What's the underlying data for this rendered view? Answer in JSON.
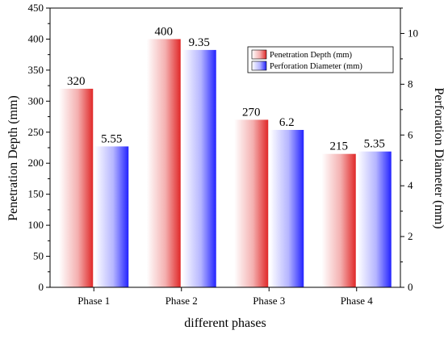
{
  "chart_data": {
    "type": "bar",
    "title": "",
    "xlabel": "different phases",
    "categories": [
      "Phase 1",
      "Phase 2",
      "Phase 3",
      "Phase 4"
    ],
    "y_left": {
      "label": "Penetration Depth (mm)",
      "lim": [
        0,
        450
      ],
      "ticks": [
        0,
        50,
        100,
        150,
        200,
        250,
        300,
        350,
        400,
        450
      ]
    },
    "y_right": {
      "label": "Perforation Diameter (mm)",
      "lim": [
        0,
        11
      ],
      "ticks": [
        0,
        2,
        4,
        6,
        8,
        10
      ]
    },
    "series": [
      {
        "name": "Penetration Depth (mm)",
        "axis": "left",
        "values": [
          320,
          400,
          270,
          215
        ],
        "labels": [
          "320",
          "400",
          "270",
          "215"
        ],
        "color_edge": "#e03030",
        "color_center": "#ffffff"
      },
      {
        "name": "Perforation Diameter (mm)",
        "axis": "right",
        "values": [
          5.55,
          9.35,
          6.2,
          5.35
        ],
        "labels": [
          "5.55",
          "9.35",
          "6.2",
          "5.35"
        ],
        "color_edge": "#2b2bff",
        "color_center": "#ffffff"
      }
    ],
    "legend_position": "top-right",
    "grid": false
  }
}
